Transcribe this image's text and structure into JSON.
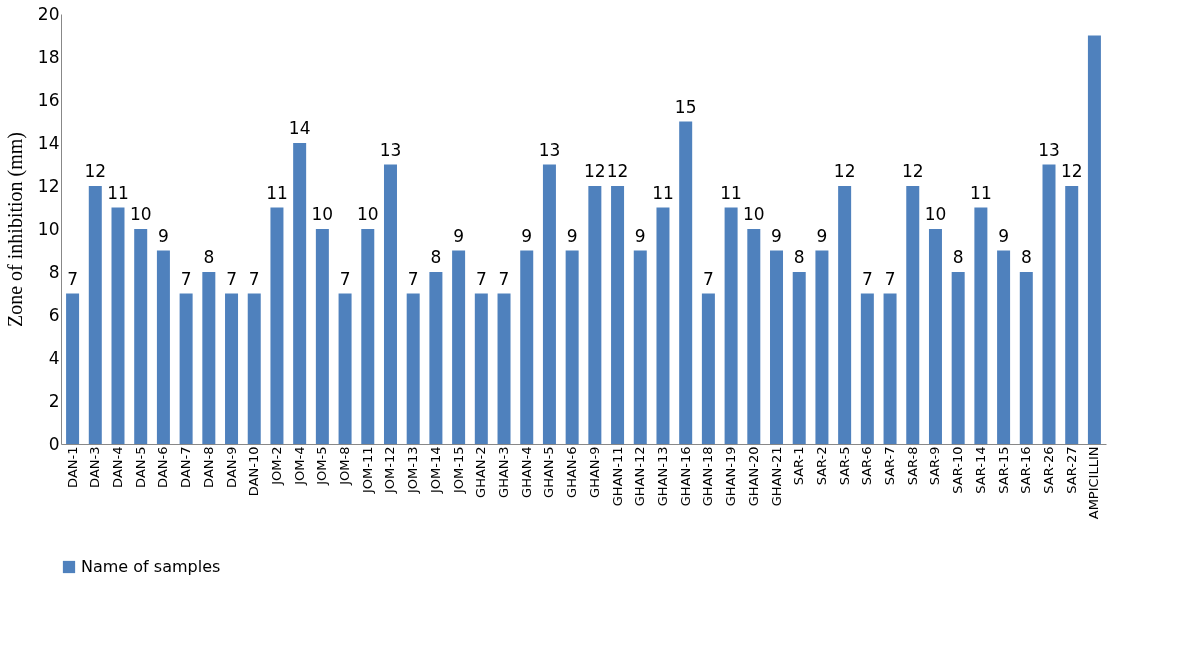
{
  "chart_data": {
    "type": "bar",
    "ylabel": "Zone of inhibition (mm)",
    "categories": [
      "DAN-1",
      "DAN-3",
      "DAN-4",
      "DAN-5",
      "DAN-6",
      "DAN-7",
      "DAN-8",
      "DAN-9",
      "DAN-10",
      "JOM-2",
      "JOM-4",
      "JOM-5",
      "JOM-8",
      "JOM-11",
      "JOM-12",
      "JOM-13",
      "JOM-14",
      "JOM-15",
      "GHAN-2",
      "GHAN-3",
      "GHAN-4",
      "GHAN-5",
      "GHAN-6",
      "GHAN-9",
      "GHAN-11",
      "GHAN-12",
      "GHAN-13",
      "GHAN-16",
      "GHAN-18",
      "GHAN-19",
      "GHAN-20",
      "GHAN-21",
      "SAR-1",
      "SAR-2",
      "SAR-5",
      "SAR-6",
      "SAR-7",
      "SAR-8",
      "SAR-9",
      "SAR-10",
      "SAR-14",
      "SAR-15",
      "SAR-16",
      "SAR-26",
      "SAR-27",
      "AMPICILLIN"
    ],
    "series": [
      {
        "name": "Name of samples",
        "color": "#4f81bd",
        "values": [
          7,
          12,
          11,
          10,
          9,
          7,
          8,
          7,
          7,
          11,
          14,
          10,
          7,
          10,
          13,
          7,
          8,
          9,
          7,
          7,
          9,
          13,
          9,
          12,
          12,
          9,
          11,
          15,
          7,
          11,
          10,
          9,
          8,
          9,
          12,
          7,
          7,
          12,
          10,
          8,
          11,
          9,
          8,
          13,
          12,
          19
        ],
        "value_labels": [
          "7",
          "12",
          "11",
          "10",
          "9",
          "7",
          "8",
          "7",
          "7",
          "11",
          "14",
          "10",
          "7",
          "10",
          "13",
          "7",
          "8",
          "9",
          "7",
          "7",
          "9",
          "13",
          "9",
          "12",
          "12",
          "9",
          "11",
          "15",
          "7",
          "11",
          "10",
          "9",
          "8",
          "9",
          "12",
          "7",
          "7",
          "12",
          "10",
          "8",
          "11",
          "9",
          "8",
          "13",
          "12",
          null
        ]
      }
    ],
    "ylim": [
      0,
      20
    ],
    "yticks": [
      0,
      2,
      4,
      6,
      8,
      10,
      12,
      14,
      16,
      18,
      20
    ],
    "grid": false,
    "legend": "bottom"
  }
}
